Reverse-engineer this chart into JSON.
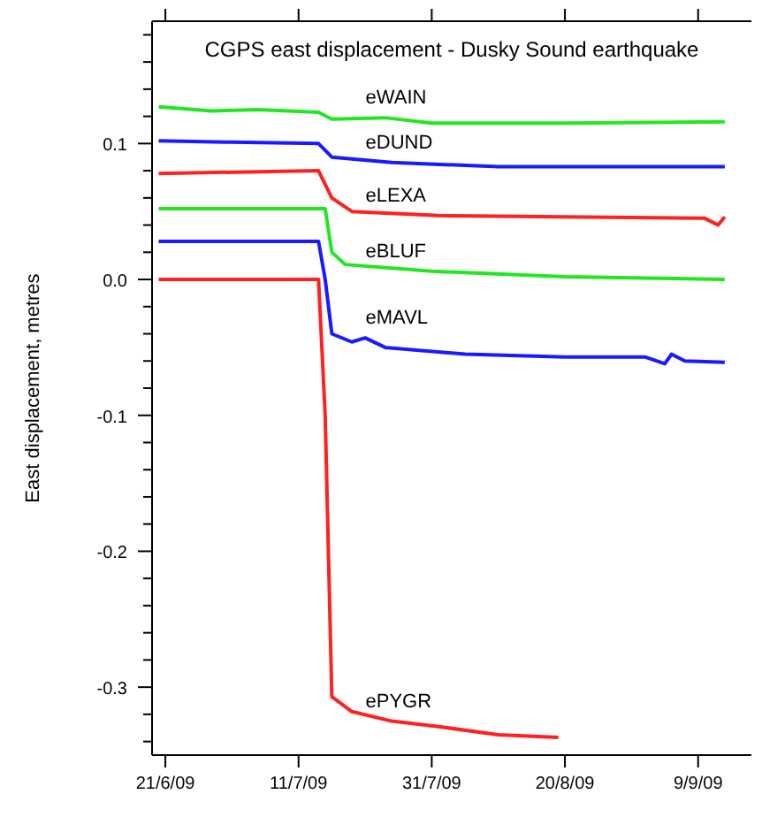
{
  "chart_data": {
    "type": "line",
    "title": "CGPS east displacement - Dusky Sound earthquake",
    "ylabel": "East displacement, metres",
    "xlim": [
      "2009-06-19",
      "2009-09-17"
    ],
    "xticks": [
      {
        "value": "2009-06-21",
        "label": "21/6/09"
      },
      {
        "value": "2009-07-11",
        "label": "11/7/09"
      },
      {
        "value": "2009-07-31",
        "label": "31/7/09"
      },
      {
        "value": "2009-08-20",
        "label": "20/8/09"
      },
      {
        "value": "2009-09-09",
        "label": "9/9/09"
      }
    ],
    "ylim": [
      -0.35,
      0.19
    ],
    "yticks": [
      {
        "value": -0.34,
        "label": null
      },
      {
        "value": -0.32,
        "label": null
      },
      {
        "value": -0.3,
        "label": "-0.3"
      },
      {
        "value": -0.28,
        "label": null
      },
      {
        "value": -0.26,
        "label": null
      },
      {
        "value": -0.24,
        "label": null
      },
      {
        "value": -0.22,
        "label": null
      },
      {
        "value": -0.2,
        "label": "-0.2"
      },
      {
        "value": -0.18,
        "label": null
      },
      {
        "value": -0.16,
        "label": null
      },
      {
        "value": -0.14,
        "label": null
      },
      {
        "value": -0.12,
        "label": null
      },
      {
        "value": -0.1,
        "label": "-0.1"
      },
      {
        "value": -0.08,
        "label": null
      },
      {
        "value": -0.06,
        "label": null
      },
      {
        "value": -0.04,
        "label": null
      },
      {
        "value": -0.02,
        "label": null
      },
      {
        "value": 0,
        "label": "0.0"
      },
      {
        "value": 0.02,
        "label": null
      },
      {
        "value": 0.04,
        "label": null
      },
      {
        "value": 0.06,
        "label": null
      },
      {
        "value": 0.08,
        "label": null
      },
      {
        "value": 0.1,
        "label": "0.1"
      },
      {
        "value": 0.12,
        "label": null
      },
      {
        "value": 0.14,
        "label": null
      },
      {
        "value": 0.16,
        "label": null
      },
      {
        "value": 0.18,
        "label": null
      }
    ],
    "grid": false,
    "marker": "none",
    "line_style": "solid",
    "series": [
      {
        "name": "eWAIN",
        "color": "#22e622",
        "x": [
          "2009-06-20",
          "2009-06-28",
          "2009-07-05",
          "2009-07-14",
          "2009-07-16",
          "2009-07-24",
          "2009-07-31",
          "2009-08-20",
          "2009-09-13"
        ],
        "values": [
          0.127,
          0.124,
          0.125,
          0.123,
          0.118,
          0.119,
          0.115,
          0.115,
          0.116
        ]
      },
      {
        "name": "eDUND",
        "color": "#1a1aff",
        "x": [
          "2009-06-20",
          "2009-07-01",
          "2009-07-14",
          "2009-07-16",
          "2009-07-25",
          "2009-08-10",
          "2009-09-13"
        ],
        "values": [
          0.102,
          0.101,
          0.1,
          0.09,
          0.086,
          0.083,
          0.083
        ]
      },
      {
        "name": "eLEXA",
        "color": "#ff2020",
        "x": [
          "2009-06-20",
          "2009-07-14",
          "2009-07-16",
          "2009-07-19",
          "2009-08-01",
          "2009-08-20",
          "2009-09-10",
          "2009-09-12",
          "2009-09-13"
        ],
        "values": [
          0.078,
          0.08,
          0.06,
          0.05,
          0.047,
          0.046,
          0.045,
          0.04,
          0.046
        ]
      },
      {
        "name": "eBLUF",
        "color": "#22e622",
        "x": [
          "2009-06-20",
          "2009-07-15",
          "2009-07-16",
          "2009-07-18",
          "2009-07-31",
          "2009-08-20",
          "2009-09-13"
        ],
        "values": [
          0.052,
          0.052,
          0.02,
          0.011,
          0.006,
          0.002,
          0.0
        ]
      },
      {
        "name": "eMAVL",
        "color": "#1a1aff",
        "x": [
          "2009-06-20",
          "2009-07-14",
          "2009-07-15",
          "2009-07-16",
          "2009-07-19",
          "2009-07-21",
          "2009-07-24",
          "2009-08-05",
          "2009-08-20",
          "2009-09-01",
          "2009-09-04",
          "2009-09-05",
          "2009-09-07",
          "2009-09-13"
        ],
        "values": [
          0.028,
          0.028,
          0.0,
          -0.04,
          -0.046,
          -0.043,
          -0.05,
          -0.055,
          -0.057,
          -0.057,
          -0.062,
          -0.055,
          -0.06,
          -0.061
        ]
      },
      {
        "name": "ePYGR",
        "color": "#ff2020",
        "x": [
          "2009-06-20",
          "2009-07-14",
          "2009-07-15",
          "2009-07-16",
          "2009-07-19",
          "2009-07-25",
          "2009-08-01",
          "2009-08-10",
          "2009-08-19"
        ],
        "values": [
          0.0,
          0.0,
          -0.1,
          -0.307,
          -0.318,
          -0.325,
          -0.329,
          -0.335,
          -0.337
        ]
      }
    ]
  }
}
